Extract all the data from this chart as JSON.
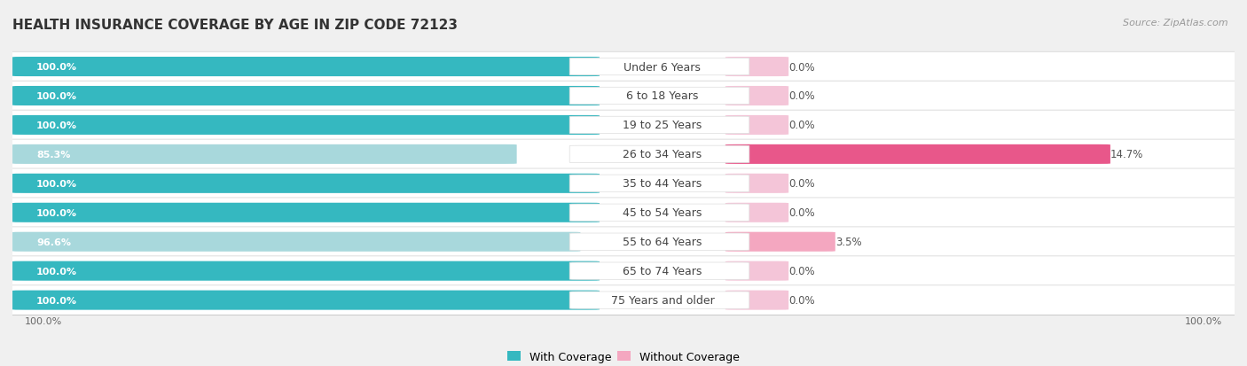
{
  "title": "HEALTH INSURANCE COVERAGE BY AGE IN ZIP CODE 72123",
  "source": "Source: ZipAtlas.com",
  "categories": [
    "Under 6 Years",
    "6 to 18 Years",
    "19 to 25 Years",
    "26 to 34 Years",
    "35 to 44 Years",
    "45 to 54 Years",
    "55 to 64 Years",
    "65 to 74 Years",
    "75 Years and older"
  ],
  "with_coverage": [
    100.0,
    100.0,
    100.0,
    85.3,
    100.0,
    100.0,
    96.6,
    100.0,
    100.0
  ],
  "without_coverage": [
    0.0,
    0.0,
    0.0,
    14.7,
    0.0,
    0.0,
    3.5,
    0.0,
    0.0
  ],
  "color_with_full": "#35B8C0",
  "color_with_partial": "#A8D8DC",
  "color_without_small": "#F4A7C0",
  "color_without_large": "#E8578A",
  "color_without_zero": "#F4C5D8",
  "bg_color": "#f0f0f0",
  "row_bg": "#ffffff",
  "label_color_with": "#ffffff",
  "title_fontsize": 11,
  "source_fontsize": 8,
  "legend_fontsize": 9,
  "bar_label_fontsize": 8,
  "category_fontsize": 9,
  "value_label_fontsize": 8.5
}
